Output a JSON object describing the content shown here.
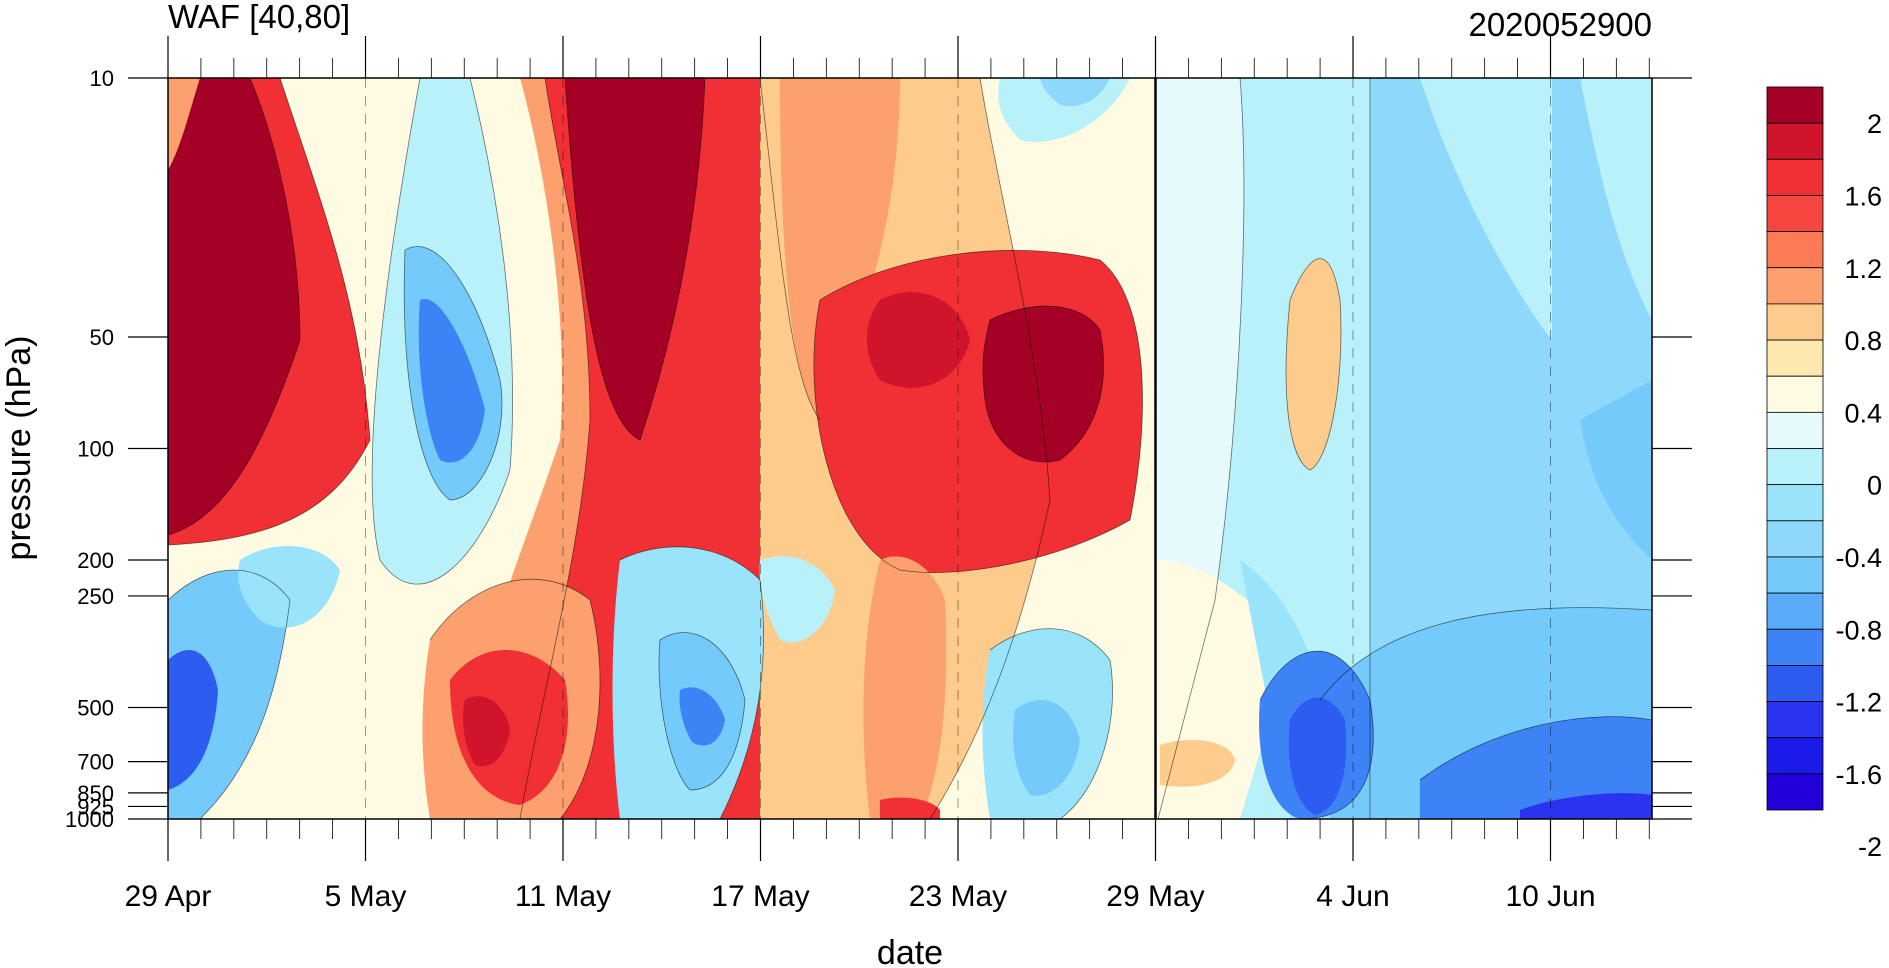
{
  "chart_data": {
    "type": "heatmap",
    "title": "WAF [40,80]",
    "subtitle": "2020052900",
    "xlabel": "date",
    "ylabel": "pressure (hPa)",
    "x_ticks": [
      "29 Apr",
      "5 May",
      "11 May",
      "17 May",
      "23 May",
      "29 May",
      "4 Jun",
      "10 Jun"
    ],
    "x_range": [
      "29 Apr",
      "13 Jun"
    ],
    "y_ticks": [
      10,
      50,
      100,
      200,
      250,
      500,
      700,
      850,
      925,
      1000
    ],
    "y_range": [
      1000,
      10
    ],
    "y_scale": "log",
    "reference_date": "29 May",
    "colorbar": {
      "placement": "right",
      "labels": [
        "2",
        "1.6",
        "1.2",
        "0.8",
        "0.4",
        "0",
        "-0.4",
        "-0.8",
        "-1.2",
        "-1.6",
        "-2"
      ],
      "colors": [
        "#a50026",
        "#d0142c",
        "#f03034",
        "#f7463f",
        "#fc7a55",
        "#fca06e",
        "#fdcb8c",
        "#fde9b0",
        "#fffbe3",
        "#e6fafe",
        "#b9f1fb",
        "#9ae4fb",
        "#8dd8fb",
        "#74cafb",
        "#5aabf9",
        "#3e83f5",
        "#2d5cf1",
        "#2a33f0",
        "#1c1ae8",
        "#2100d9"
      ]
    }
  }
}
